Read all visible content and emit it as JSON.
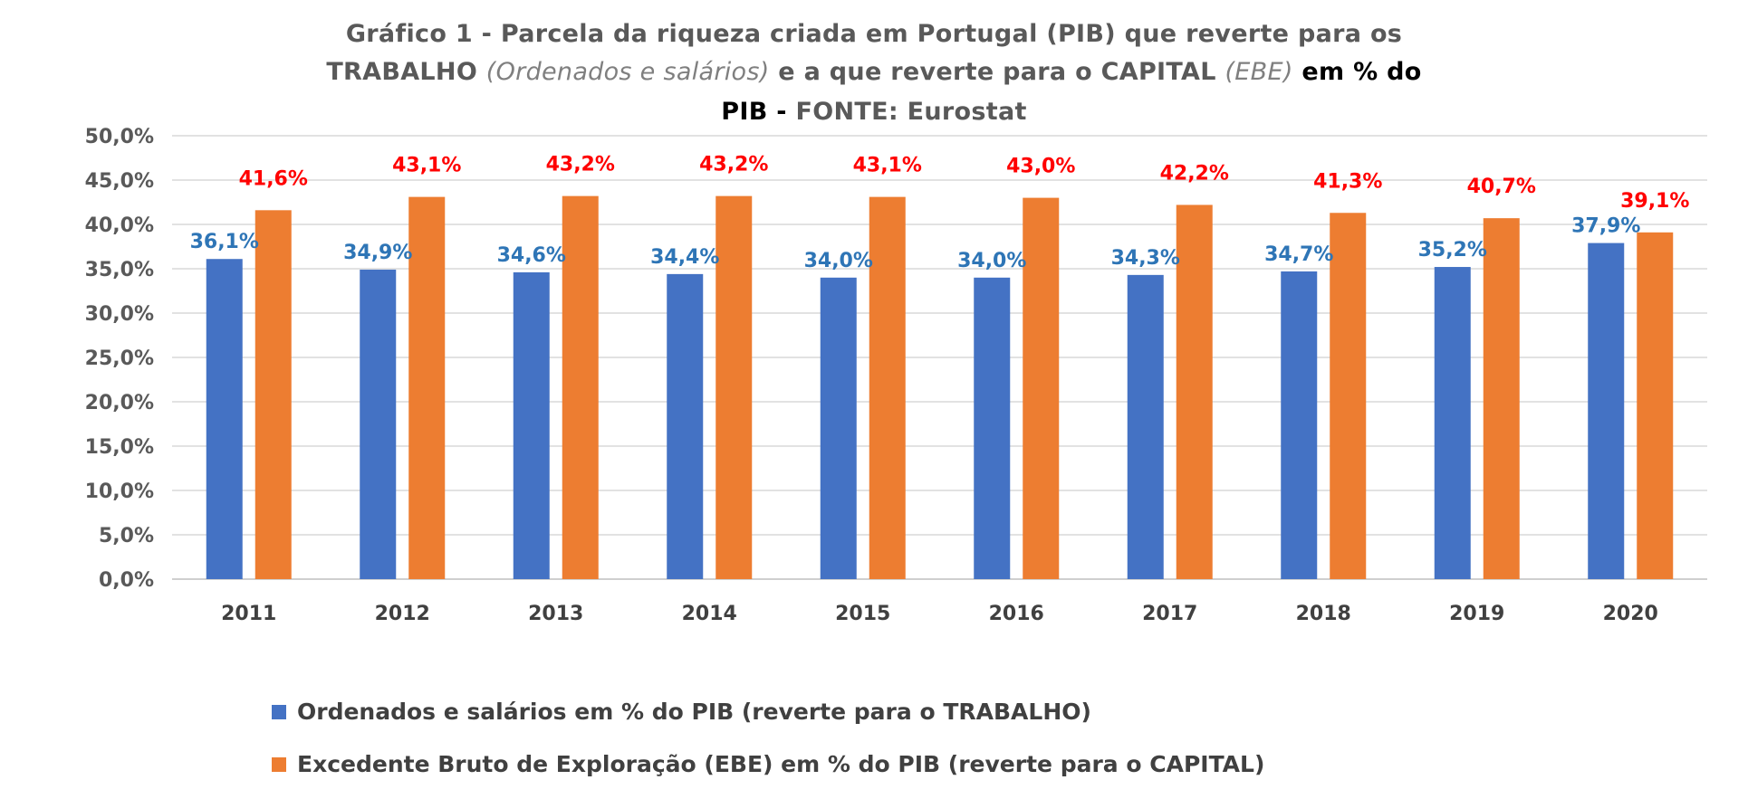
{
  "title": {
    "line1": "Gráfico 1 - Parcela da riqueza criada em Portugal (PIB) que reverte para os",
    "line2_a": "TRABALHO",
    "line2_b": "(Ordenados e salários)",
    "line2_c": "e a que reverte para o CAPITAL",
    "line2_d": "(EBE)",
    "line2_e": "em % do",
    "line3_a": "PIB -",
    "line3_b": "FONTE: Eurostat"
  },
  "colors": {
    "series_a": "#4472c4",
    "series_b": "#ed7d31",
    "label_a": "#2e75b6",
    "label_b": "#ff0000",
    "grid": "#d9d9d9"
  },
  "chart_data": {
    "type": "bar",
    "categories": [
      "2011",
      "2012",
      "2013",
      "2014",
      "2015",
      "2016",
      "2017",
      "2018",
      "2019",
      "2020"
    ],
    "series": [
      {
        "name": "Ordenados e salários em % do PIB (reverte para o TRABALHO)",
        "values": [
          36.1,
          34.9,
          34.6,
          34.4,
          34.0,
          34.0,
          34.3,
          34.7,
          35.2,
          37.9
        ],
        "labels": [
          "36,1%",
          "34,9%",
          "34,6%",
          "34,4%",
          "34,0%",
          "34,0%",
          "34,3%",
          "34,7%",
          "35,2%",
          "37,9%"
        ]
      },
      {
        "name": "Excedente Bruto de Exploração (EBE) em % do PIB  (reverte para o CAPITAL)",
        "values": [
          41.6,
          43.1,
          43.2,
          43.2,
          43.1,
          43.0,
          42.2,
          41.3,
          40.7,
          39.1
        ],
        "labels": [
          "41,6%",
          "43,1%",
          "43,2%",
          "43,2%",
          "43,1%",
          "43,0%",
          "42,2%",
          "41,3%",
          "40,7%",
          "39,1%"
        ]
      }
    ],
    "ylim": [
      0,
      50
    ],
    "yticks": [
      "0,0%",
      "5,0%",
      "10,0%",
      "15,0%",
      "20,0%",
      "25,0%",
      "30,0%",
      "35,0%",
      "40,0%",
      "45,0%",
      "50,0%"
    ],
    "grid": true,
    "legend_position": "bottom"
  }
}
